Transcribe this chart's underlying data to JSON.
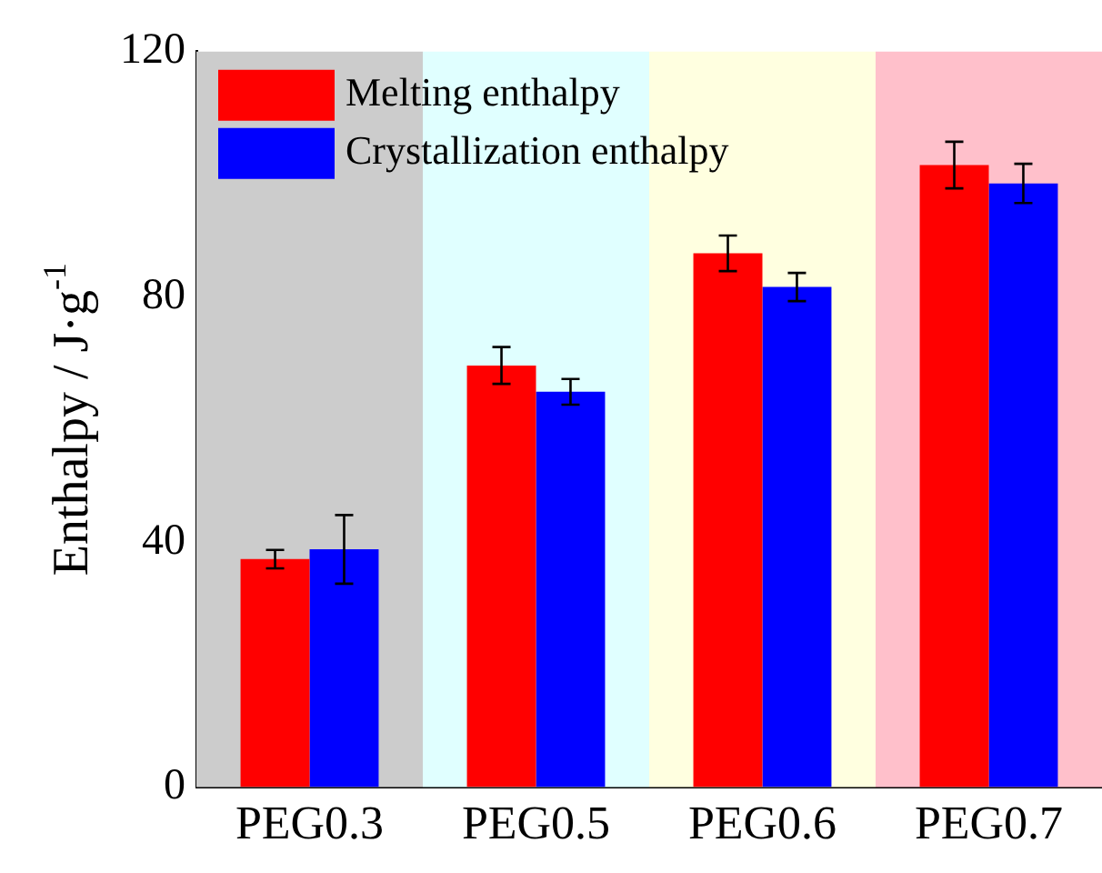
{
  "chart_data": {
    "type": "bar",
    "ylabel": "Enthalpy / J·g$^{-1}$",
    "categories": [
      "PEG0.3",
      "PEG0.5",
      "PEG0.6",
      "PEG0.7"
    ],
    "series": [
      {
        "name": "Melting enthalpy",
        "color": "#ff0000",
        "values": [
          37.2,
          68.8,
          87.1,
          101.5
        ],
        "errors": [
          1.5,
          3,
          2.9,
          3.8
        ]
      },
      {
        "name": "Crystallization enthalpy",
        "color": "#0000ff",
        "values": [
          38.8,
          64.5,
          81.6,
          98.5
        ],
        "errors": [
          5.6,
          2.1,
          2.3,
          3.2
        ]
      }
    ],
    "bands": [
      {
        "axis": "x",
        "from": "PEG0.3",
        "to": "PEG0.3",
        "color": "#cccccc"
      },
      {
        "axis": "x",
        "from": "PEG0.5",
        "to": "PEG0.5",
        "color": "#e0ffff"
      },
      {
        "axis": "x",
        "from": "PEG0.6",
        "to": "PEG0.6",
        "color": "#ffffe0"
      },
      {
        "axis": "x",
        "from": "PEG0.7",
        "to": "PEG0.7",
        "color": "#ffc0cb"
      }
    ],
    "ylim": [
      0,
      120
    ],
    "yticks": [
      0,
      40,
      80,
      120
    ],
    "grid": false,
    "legend": "top left"
  }
}
